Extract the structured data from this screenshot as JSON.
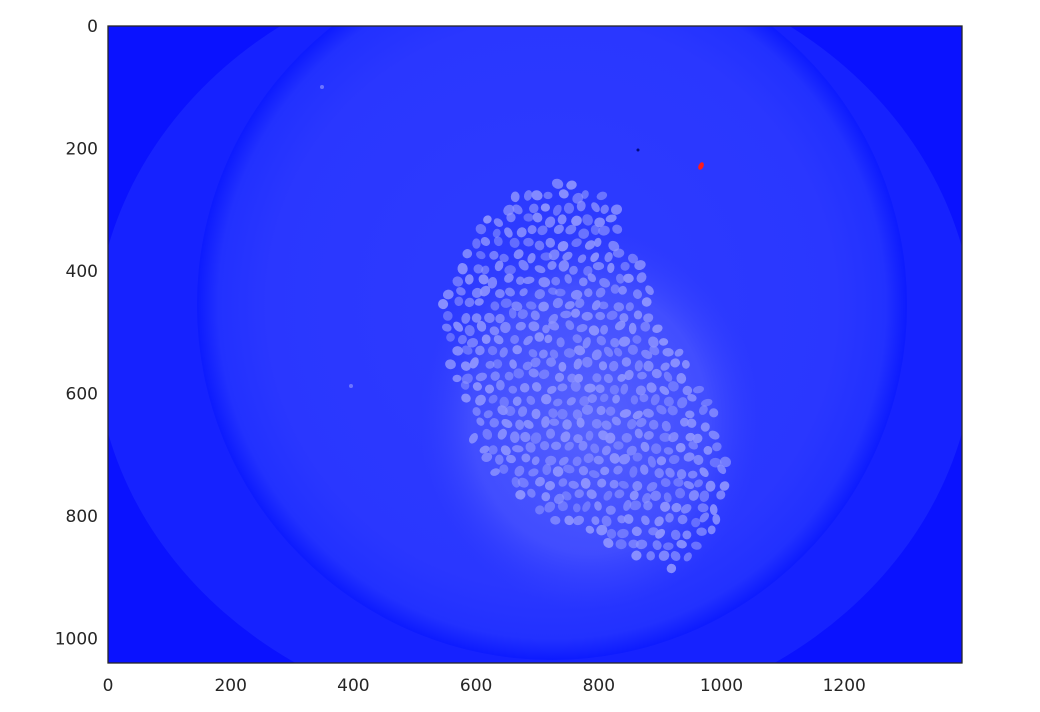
{
  "figure": {
    "image_subject": "fluorescence microscopy image of a cell cluster (blue channel)",
    "colors": {
      "background_blue": "#0a12ff",
      "vignette_blue": "#2a36ff",
      "cell_nuclei": "#8f95ff",
      "marker_red": "#ff1a1a",
      "axes_spine": "#262626"
    }
  },
  "axes": {
    "x": {
      "ticks": [
        0,
        200,
        400,
        600,
        800,
        1000,
        1200
      ],
      "labels": [
        "0",
        "200",
        "400",
        "600",
        "800",
        "1000",
        "1200"
      ],
      "range": [
        0,
        1392
      ]
    },
    "y": {
      "ticks": [
        0,
        200,
        400,
        600,
        800,
        1000
      ],
      "labels": [
        "0",
        "200",
        "400",
        "600",
        "800",
        "1000"
      ],
      "range": [
        0,
        1040
      ],
      "inverted": true
    },
    "grid": false
  }
}
